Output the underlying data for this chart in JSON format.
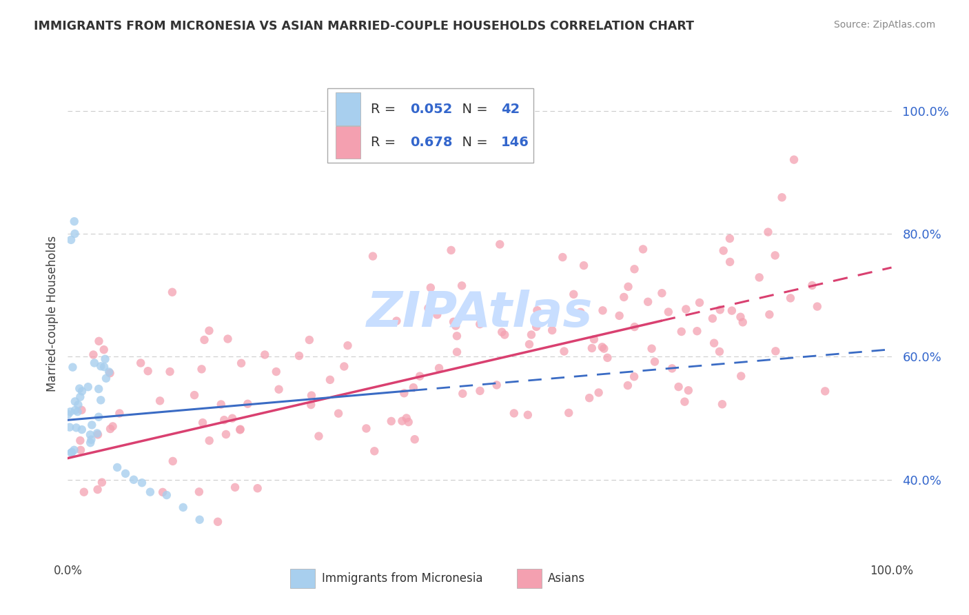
{
  "title": "IMMIGRANTS FROM MICRONESIA VS ASIAN MARRIED-COUPLE HOUSEHOLDS CORRELATION CHART",
  "source": "Source: ZipAtlas.com",
  "ylabel_label": "Married-couple Households",
  "legend_labels": [
    "Immigrants from Micronesia",
    "Asians"
  ],
  "R_blue": 0.052,
  "N_blue": 42,
  "R_pink": 0.678,
  "N_pink": 146,
  "blue_color": "#A8CFEE",
  "pink_color": "#F4A0B0",
  "blue_line_color": "#3A6BC4",
  "pink_line_color": "#D94070",
  "text_blue": "#3366CC",
  "text_dark": "#404040",
  "grid_color": "#CCCCCC",
  "watermark_color": "#C8DEFF",
  "ytick_values": [
    0.4,
    0.6,
    0.8,
    1.0
  ],
  "ytick_labels": [
    "40.0%",
    "60.0%",
    "80.0%",
    "100.0%"
  ],
  "xlim": [
    0.0,
    1.0
  ],
  "ylim": [
    0.28,
    1.06
  ],
  "blue_line": {
    "x0": 0.0,
    "y0": 0.497,
    "x1": 1.0,
    "y1": 0.612,
    "solid_end": 0.42
  },
  "pink_line": {
    "x0": 0.0,
    "y0": 0.435,
    "x1": 1.0,
    "y1": 0.745,
    "solid_end": 0.72
  }
}
